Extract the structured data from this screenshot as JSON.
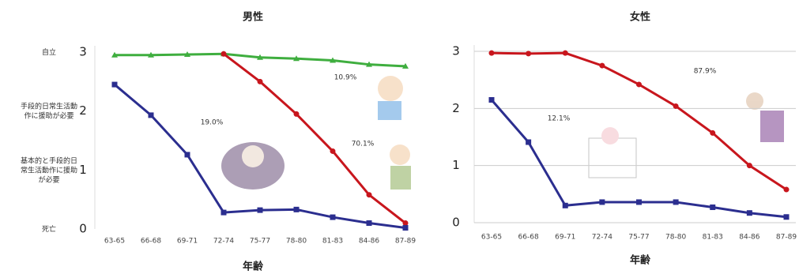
{
  "chart_data": [
    {
      "type": "line",
      "title": "男性",
      "x_label": "年齢",
      "categories": [
        "63-65",
        "66-68",
        "69-71",
        "72-74",
        "75-77",
        "78-80",
        "81-83",
        "84-86",
        "87-89"
      ],
      "ylim": [
        0,
        3
      ],
      "yticks": [
        0,
        1,
        2,
        3
      ],
      "grid": false,
      "level_labels": [
        {
          "value": 3,
          "label": "自立"
        },
        {
          "value": 2,
          "label": "手段的日常生活動作に援助が必要"
        },
        {
          "value": 1,
          "label": "基本的と手段的日常生活動作に援助が必要"
        },
        {
          "value": 0,
          "label": "死亡"
        }
      ],
      "series": [
        {
          "color": "#3fae3f",
          "marker": "triangle",
          "values": [
            2.95,
            2.95,
            2.96,
            2.97,
            2.91,
            2.89,
            2.86,
            2.79,
            2.76
          ]
        },
        {
          "color": "#c8161d",
          "marker": "circle",
          "values": [
            null,
            null,
            null,
            2.97,
            2.5,
            1.95,
            1.32,
            0.58,
            0.1
          ]
        },
        {
          "color": "#2b2e8f",
          "marker": "square",
          "values": [
            2.45,
            1.93,
            1.26,
            0.28,
            0.32,
            0.33,
            0.2,
            0.1,
            0.02
          ]
        }
      ],
      "annotations": [
        "10.9%",
        "19.0%",
        "70.1%"
      ]
    },
    {
      "type": "line",
      "title": "女性",
      "x_label": "年齢",
      "categories": [
        "63-65",
        "66-68",
        "69-71",
        "72-74",
        "75-77",
        "78-80",
        "81-83",
        "84-86",
        "87-89"
      ],
      "ylim": [
        0,
        3
      ],
      "yticks": [
        0,
        1,
        2,
        3
      ],
      "grid": true,
      "series": [
        {
          "color": "#c8161d",
          "marker": "circle",
          "values": [
            2.97,
            2.96,
            2.97,
            2.75,
            2.42,
            2.04,
            1.57,
            1.0,
            0.58
          ]
        },
        {
          "color": "#2b2e8f",
          "marker": "square",
          "values": [
            2.15,
            1.41,
            0.3,
            0.36,
            0.36,
            0.36,
            0.27,
            0.17,
            0.1
          ]
        }
      ],
      "annotations": [
        "87.9%",
        "12.1%"
      ]
    }
  ]
}
